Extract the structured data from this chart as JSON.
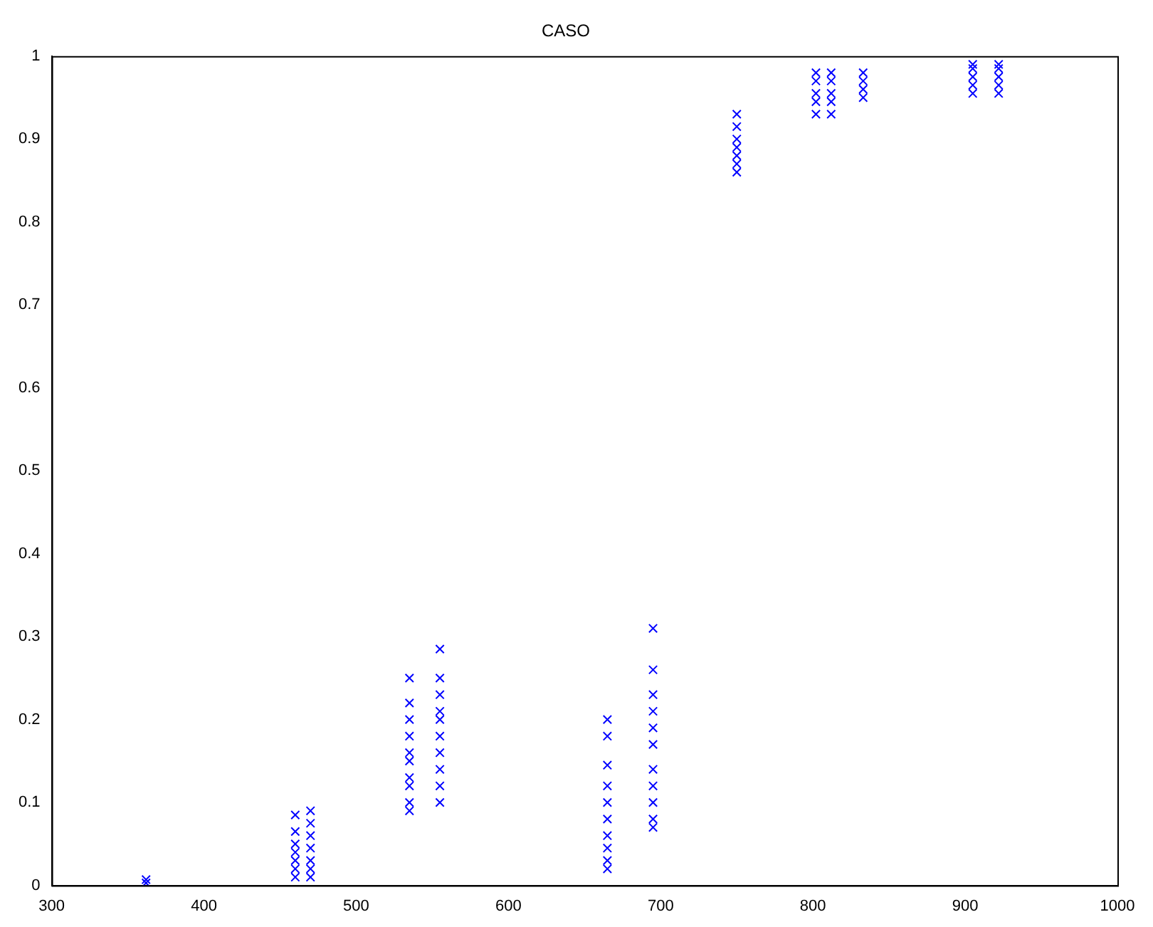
{
  "chart_data": {
    "type": "scatter",
    "title": "CASO",
    "marker": "cross",
    "grid": false,
    "legend": false,
    "xlim": [
      300,
      1000
    ],
    "xticks": [
      300,
      400,
      500,
      600,
      700,
      800,
      900,
      1000
    ],
    "ylim": [
      0,
      1
    ],
    "yticks": [
      0,
      0.1,
      0.2,
      0.3,
      0.4,
      0.5,
      0.6,
      0.7,
      0.8,
      0.9,
      1
    ],
    "series": [
      {
        "color": "#0000ff",
        "x": [
          362,
          362,
          460,
          460,
          460,
          460,
          460,
          460,
          460,
          470,
          470,
          470,
          470,
          470,
          470,
          470,
          535,
          535,
          535,
          535,
          535,
          535,
          535,
          535,
          535,
          535,
          555,
          555,
          555,
          555,
          555,
          555,
          555,
          555,
          555,
          555,
          665,
          665,
          665,
          665,
          665,
          665,
          665,
          665,
          665,
          665,
          695,
          695,
          695,
          695,
          695,
          695,
          695,
          695,
          695,
          695,
          695,
          750,
          750,
          750,
          750,
          750,
          750,
          750,
          802,
          802,
          802,
          802,
          802,
          812,
          812,
          812,
          812,
          812,
          833,
          833,
          833,
          833,
          905,
          905,
          905,
          905,
          905,
          922,
          922,
          922,
          922,
          922
        ],
        "values": [
          0.003,
          0.007,
          0.01,
          0.02,
          0.03,
          0.04,
          0.05,
          0.065,
          0.085,
          0.01,
          0.02,
          0.03,
          0.045,
          0.06,
          0.075,
          0.09,
          0.09,
          0.1,
          0.12,
          0.13,
          0.15,
          0.16,
          0.18,
          0.2,
          0.22,
          0.25,
          0.1,
          0.12,
          0.14,
          0.16,
          0.18,
          0.2,
          0.21,
          0.23,
          0.25,
          0.285,
          0.02,
          0.03,
          0.045,
          0.06,
          0.08,
          0.1,
          0.12,
          0.145,
          0.18,
          0.2,
          0.07,
          0.08,
          0.1,
          0.12,
          0.14,
          0.17,
          0.19,
          0.21,
          0.23,
          0.26,
          0.31,
          0.86,
          0.87,
          0.88,
          0.89,
          0.9,
          0.915,
          0.93,
          0.93,
          0.945,
          0.955,
          0.97,
          0.98,
          0.93,
          0.945,
          0.955,
          0.97,
          0.98,
          0.95,
          0.96,
          0.97,
          0.98,
          0.955,
          0.965,
          0.975,
          0.985,
          0.99,
          0.955,
          0.965,
          0.975,
          0.985,
          0.99
        ]
      }
    ]
  }
}
